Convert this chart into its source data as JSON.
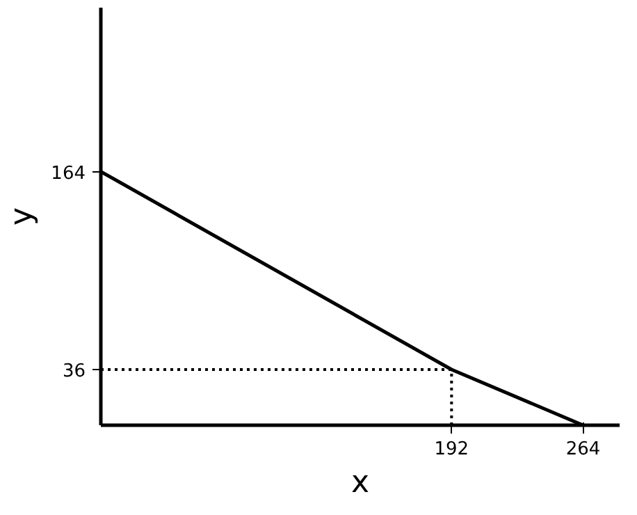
{
  "chart_data": {
    "type": "line",
    "xlabel": "x",
    "ylabel": "y",
    "xlim": [
      0,
      284
    ],
    "ylim": [
      0,
      270
    ],
    "xticks": [
      192,
      264
    ],
    "yticks": [
      36,
      164
    ],
    "grid": false,
    "series": [
      {
        "x": [
          0,
          192,
          264
        ],
        "values": [
          164,
          36,
          0
        ],
        "color": "#000000",
        "line_style": "solid"
      },
      {
        "x": [
          192,
          192
        ],
        "values": [
          0,
          36
        ],
        "color": "#000000",
        "line_style": "dotted"
      },
      {
        "x": [
          0,
          192
        ],
        "values": [
          36,
          36
        ],
        "color": "#000000",
        "line_style": "dotted"
      }
    ]
  }
}
